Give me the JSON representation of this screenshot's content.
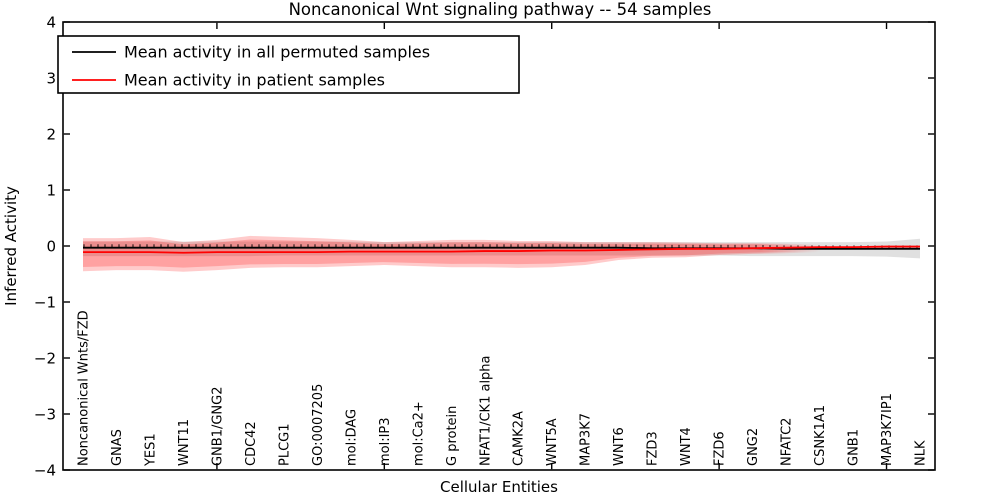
{
  "title": "Noncanonical Wnt signaling pathway -- 54 samples",
  "xlabel": "Cellular Entities",
  "ylabel": "Inferred Activity",
  "legend": {
    "position": "upper left",
    "items": [
      {
        "label": "Mean activity in all permuted samples",
        "color": "#000000"
      },
      {
        "label": "Mean activity in patient samples",
        "color": "#ff0000"
      }
    ]
  },
  "y_tick_labels": [
    "4",
    "3",
    "2",
    "1",
    "0",
    "−1",
    "−2",
    "−3",
    "−4"
  ],
  "colors": {
    "frame": "#000000",
    "permuted_line": "#000000",
    "patient_line": "#ff0000",
    "patient_band": "#ff0000",
    "permuted_band": "#bbbbbb"
  },
  "chart_data": {
    "type": "line",
    "title": "Noncanonical Wnt signaling pathway -- 54 samples",
    "xlabel": "Cellular Entities",
    "ylabel": "Inferred Activity",
    "ylim": [
      -4,
      4
    ],
    "grid": false,
    "legend_position": "upper left",
    "x_major_ticks_at_category_numbers": [
      5,
      10,
      15,
      20,
      25
    ],
    "categories": [
      "Noncanonical Wnts/FZD",
      "GNAS",
      "YES1",
      "WNT11",
      "GNB1/GNG2",
      "CDC42",
      "PLCG1",
      "GO:0007205",
      "mol:DAG",
      "mol:IP3",
      "mol:Ca2+",
      "G protein",
      "NFAT1/CK1 alpha",
      "CAMK2A",
      "WNT5A",
      "MAP3K7",
      "WNT6",
      "FZD3",
      "WNT4",
      "FZD6",
      "GNG2",
      "NFATC2",
      "CSNK1A1",
      "GNB1",
      "MAP3K7IP1",
      "NLK"
    ],
    "series": [
      {
        "name": "Mean activity in all permuted samples",
        "color": "#000000",
        "style": "solid line with dense small error-bar caps",
        "values": [
          -0.03,
          -0.03,
          -0.03,
          -0.03,
          -0.03,
          -0.03,
          -0.03,
          -0.03,
          -0.03,
          -0.03,
          -0.03,
          -0.03,
          -0.03,
          -0.03,
          -0.03,
          -0.03,
          -0.03,
          -0.04,
          -0.04,
          -0.04,
          -0.04,
          -0.05,
          -0.05,
          -0.05,
          -0.05,
          -0.05
        ]
      },
      {
        "name": "Mean activity in patient samples",
        "color": "#ff0000",
        "style": "solid line",
        "values": [
          -0.11,
          -0.11,
          -0.11,
          -0.12,
          -0.11,
          -0.11,
          -0.11,
          -0.11,
          -0.1,
          -0.1,
          -0.1,
          -0.1,
          -0.09,
          -0.09,
          -0.08,
          -0.08,
          -0.07,
          -0.06,
          -0.05,
          -0.05,
          -0.04,
          -0.03,
          -0.02,
          -0.02,
          -0.01,
          -0.01
        ]
      }
    ],
    "bands": [
      {
        "name": "patient samples activity range",
        "color": "#ff0000",
        "opacity": 0.2,
        "fades_out_after_category": "CSNK1A1",
        "upper": [
          0.14,
          0.14,
          0.16,
          0.07,
          0.11,
          0.18,
          0.16,
          0.14,
          0.11,
          0.07,
          0.09,
          0.11,
          0.11,
          0.09,
          0.09,
          0.07,
          0.07,
          0.07,
          0.06,
          0.05,
          0.05,
          0.04,
          0.03,
          0.03,
          0.02,
          0.02
        ],
        "lower": [
          -0.45,
          -0.43,
          -0.43,
          -0.46,
          -0.43,
          -0.39,
          -0.38,
          -0.38,
          -0.36,
          -0.34,
          -0.36,
          -0.38,
          -0.38,
          -0.39,
          -0.38,
          -0.34,
          -0.25,
          -0.21,
          -0.2,
          -0.16,
          -0.14,
          -0.13,
          -0.11,
          -0.1,
          -0.09,
          -0.08
        ]
      },
      {
        "name": "permuted samples activity range",
        "color": "#999999",
        "opacity": 0.35,
        "upper": [
          0.08,
          0.08,
          0.08,
          0.08,
          0.08,
          0.08,
          0.08,
          0.08,
          0.08,
          0.07,
          0.07,
          0.07,
          0.07,
          0.07,
          0.07,
          0.07,
          0.07,
          0.07,
          0.07,
          0.07,
          0.07,
          0.07,
          0.07,
          0.07,
          0.08,
          0.13
        ],
        "lower": [
          -0.18,
          -0.18,
          -0.18,
          -0.18,
          -0.18,
          -0.18,
          -0.17,
          -0.17,
          -0.17,
          -0.17,
          -0.17,
          -0.17,
          -0.17,
          -0.17,
          -0.17,
          -0.17,
          -0.17,
          -0.17,
          -0.17,
          -0.17,
          -0.18,
          -0.18,
          -0.18,
          -0.18,
          -0.19,
          -0.22
        ]
      }
    ]
  }
}
